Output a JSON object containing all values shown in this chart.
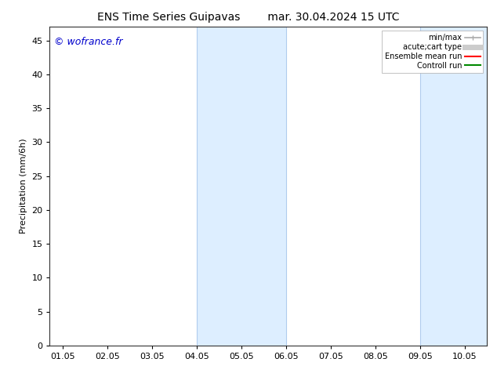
{
  "title_left": "ENS Time Series Guipavas",
  "title_right": "mar. 30.04.2024 15 UTC",
  "ylabel": "Precipitation (mm/6h)",
  "watermark": "© wofrance.fr",
  "watermark_color": "#0000cc",
  "ylim": [
    0,
    47
  ],
  "yticks": [
    0,
    5,
    10,
    15,
    20,
    25,
    30,
    35,
    40,
    45
  ],
  "xtick_labels": [
    "01.05",
    "02.05",
    "03.05",
    "04.05",
    "05.05",
    "06.05",
    "07.05",
    "08.05",
    "09.05",
    "10.05"
  ],
  "background_color": "#ffffff",
  "plot_bg_color": "#ffffff",
  "shade_regions": [
    {
      "xmin": 3,
      "xmax": 5,
      "color": "#ddeeff"
    },
    {
      "xmin": 8,
      "xmax": 10,
      "color": "#ddeeff"
    }
  ],
  "vertical_lines_color": "#b0ccee",
  "legend_entries": [
    {
      "label": "min/max",
      "color": "#aaaaaa",
      "lw": 1.2
    },
    {
      "label": "acute;cart type",
      "color": "#cccccc",
      "lw": 5
    },
    {
      "label": "Ensemble mean run",
      "color": "#ff0000",
      "lw": 1.5
    },
    {
      "label": "Controll run",
      "color": "#008800",
      "lw": 1.5
    }
  ],
  "title_fontsize": 10,
  "axis_fontsize": 8,
  "tick_fontsize": 8,
  "watermark_fontsize": 9
}
